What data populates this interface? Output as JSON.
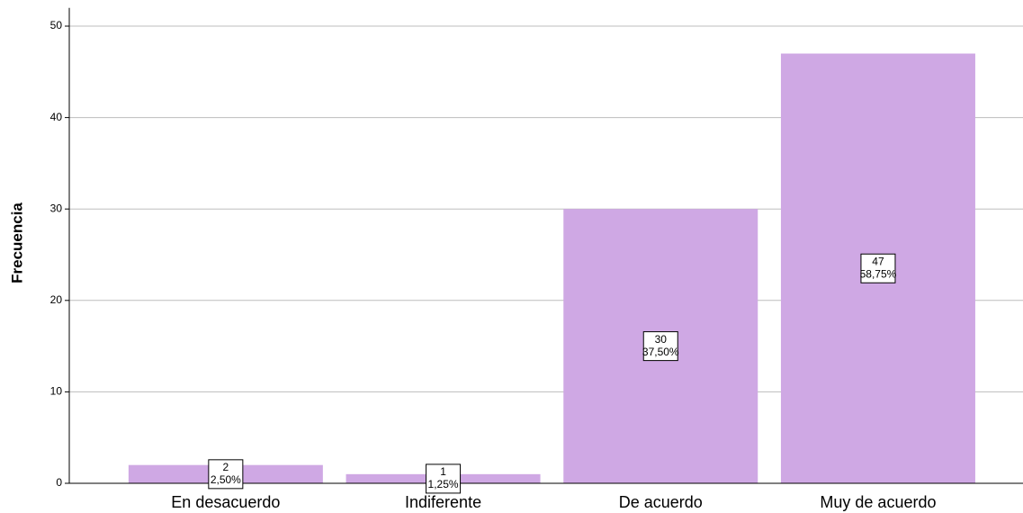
{
  "chart_data": {
    "type": "bar",
    "y_label": "Frecuencia",
    "categories": [
      "En desacuerdo",
      "Indiferente",
      "De acuerdo",
      "Muy de acuerdo"
    ],
    "values": [
      2,
      1,
      30,
      47
    ],
    "percent_labels": [
      "2,50%",
      "1,25%",
      "37,50%",
      "58,75%"
    ],
    "color": "#cfa8e4",
    "ylim": [
      0,
      52
    ],
    "yticks": [
      0,
      10,
      20,
      30,
      40,
      50
    ],
    "grid": true
  }
}
